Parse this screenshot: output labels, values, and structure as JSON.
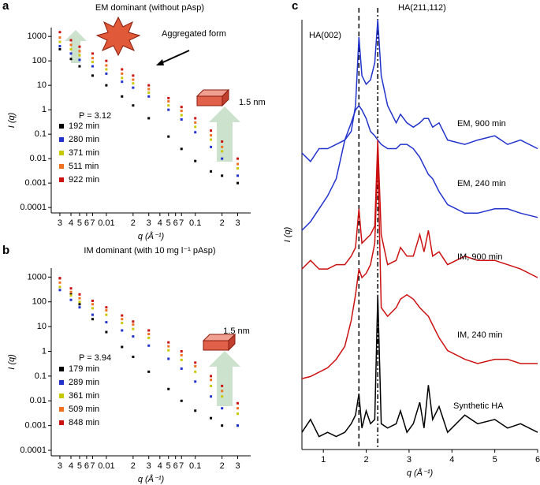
{
  "chart_data": [
    {
      "type": "scatter",
      "label": "a",
      "title": "EM dominant (without pAsp)",
      "xlabel": "q (Å⁻¹)",
      "ylabel": "I (q)",
      "log": true,
      "xlim": [
        0.0024,
        0.42
      ],
      "ylim": [
        6e-05,
        2300
      ],
      "xticks": [
        {
          "value": 0.003,
          "label": "3"
        },
        {
          "value": 0.004,
          "label": "4"
        },
        {
          "value": 0.005,
          "label": "5"
        },
        {
          "value": 0.006,
          "label": "6"
        },
        {
          "value": 0.007,
          "label": "7"
        },
        0.01,
        {
          "value": 0.02,
          "label": "2"
        },
        {
          "value": 0.03,
          "label": "3"
        },
        {
          "value": 0.04,
          "label": "4"
        },
        {
          "value": 0.05,
          "label": "5"
        },
        {
          "value": 0.06,
          "label": "6"
        },
        {
          "value": 0.07,
          "label": "7"
        },
        0.1,
        {
          "value": 0.2,
          "label": "2"
        },
        {
          "value": 0.3,
          "label": "3"
        }
      ],
      "yticks": [
        0.0001,
        0.001,
        0.01,
        0.1,
        1,
        10,
        100,
        1000
      ],
      "annotations": [
        "Aggregated form",
        "1.5 nm",
        "P = 3.12"
      ],
      "x": [
        0.003,
        0.004,
        0.005,
        0.007,
        0.01,
        0.015,
        0.02,
        0.03,
        0.05,
        0.07,
        0.1,
        0.15,
        0.2,
        0.3
      ],
      "series": [
        {
          "name": "192 min",
          "color": "#000000",
          "values": [
            300,
            120,
            60,
            25,
            10,
            3.5,
            1.5,
            0.45,
            0.08,
            0.025,
            0.008,
            0.003,
            0.002,
            0.001
          ]
        },
        {
          "name": "280 min",
          "color": "#2233cc",
          "values": [
            400,
            200,
            110,
            60,
            30,
            14,
            8,
            3.5,
            1,
            0.4,
            0.12,
            0.03,
            0.01,
            0.002
          ]
        },
        {
          "name": "371 min",
          "color": "#c8c800",
          "values": [
            600,
            300,
            170,
            90,
            45,
            20,
            12,
            5,
            1.5,
            0.6,
            0.2,
            0.06,
            0.02,
            0.004
          ]
        },
        {
          "name": "511 min",
          "color": "#f07020",
          "values": [
            900,
            450,
            250,
            130,
            65,
            30,
            17,
            7,
            2.2,
            0.9,
            0.3,
            0.09,
            0.03,
            0.006
          ]
        },
        {
          "name": "922 min",
          "color": "#cc1111",
          "values": [
            1500,
            700,
            380,
            200,
            100,
            45,
            25,
            10,
            3,
            1.3,
            0.45,
            0.14,
            0.05,
            0.01
          ]
        }
      ]
    },
    {
      "type": "scatter",
      "label": "b",
      "title": "IM dominant (with 10 mg l⁻¹ pAsp)",
      "xlabel": "q (Å⁻¹)",
      "ylabel": "I (q)",
      "log": true,
      "xlim": [
        0.0024,
        0.42
      ],
      "ylim": [
        6e-05,
        2300
      ],
      "xticks": [
        {
          "value": 0.003,
          "label": "3"
        },
        {
          "value": 0.004,
          "label": "4"
        },
        {
          "value": 0.005,
          "label": "5"
        },
        {
          "value": 0.006,
          "label": "6"
        },
        {
          "value": 0.007,
          "label": "7"
        },
        0.01,
        {
          "value": 0.02,
          "label": "2"
        },
        {
          "value": 0.03,
          "label": "3"
        },
        {
          "value": 0.04,
          "label": "4"
        },
        {
          "value": 0.05,
          "label": "5"
        },
        {
          "value": 0.06,
          "label": "6"
        },
        {
          "value": 0.07,
          "label": "7"
        },
        0.1,
        {
          "value": 0.2,
          "label": "2"
        },
        {
          "value": 0.3,
          "label": "3"
        }
      ],
      "yticks": [
        0.0001,
        0.001,
        0.01,
        0.1,
        1,
        10,
        100,
        1000
      ],
      "annotations": [
        "1.5 nm",
        "P = 3.94"
      ],
      "x": [
        0.003,
        0.004,
        0.005,
        0.007,
        0.01,
        0.015,
        0.02,
        0.03,
        0.05,
        0.07,
        0.1,
        0.15,
        0.2,
        0.3
      ],
      "series": [
        {
          "name": "179 min",
          "color": "#000000",
          "values": [
            900,
            200,
            80,
            20,
            6,
            1.5,
            0.6,
            0.15,
            0.03,
            0.01,
            0.004,
            0.002,
            0.001,
            0.001
          ]
        },
        {
          "name": "289 min",
          "color": "#2233cc",
          "values": [
            300,
            120,
            60,
            30,
            15,
            7,
            4,
            1.7,
            0.5,
            0.2,
            0.06,
            0.015,
            0.005,
            0.001
          ]
        },
        {
          "name": "361 min",
          "color": "#c8c800",
          "values": [
            400,
            180,
            100,
            55,
            30,
            14,
            8,
            3.5,
            1.1,
            0.45,
            0.15,
            0.04,
            0.015,
            0.003
          ]
        },
        {
          "name": "509 min",
          "color": "#f07020",
          "values": [
            600,
            250,
            140,
            80,
            45,
            20,
            12,
            5,
            1.6,
            0.7,
            0.25,
            0.07,
            0.025,
            0.005
          ]
        },
        {
          "name": "848 min",
          "color": "#cc1111",
          "values": [
            900,
            350,
            200,
            110,
            60,
            28,
            16,
            7,
            2.3,
            1,
            0.35,
            0.1,
            0.04,
            0.008
          ]
        }
      ]
    },
    {
      "type": "line",
      "label": "c",
      "xlabel": "q (Å⁻¹)",
      "ylabel": "I (q)",
      "xlim": [
        0.5,
        6
      ],
      "ylim": [
        0,
        100
      ],
      "xticks": [
        1,
        2,
        3,
        4,
        5,
        6
      ],
      "vlines": [
        1.83,
        2.27
      ],
      "annotations": [
        "HA(002)",
        "HA(211,112)",
        "EM, 900 min",
        "EM, 240 min",
        "IM, 900 min",
        "IM, 240 min",
        "Synthetic HA"
      ],
      "x": [
        0.5,
        0.7,
        0.9,
        1.1,
        1.3,
        1.5,
        1.65,
        1.75,
        1.83,
        1.9,
        2.0,
        2.1,
        2.2,
        2.27,
        2.35,
        2.5,
        2.7,
        2.8,
        2.95,
        3.1,
        3.25,
        3.35,
        3.45,
        3.55,
        3.7,
        3.9,
        4.3,
        4.6,
        5.0,
        5.3,
        5.6,
        6.0
      ],
      "series": [
        {
          "name": "EM, 900 min",
          "color": "#2233cc",
          "values": [
            69,
            67,
            70,
            70,
            71,
            72,
            74,
            80,
            96,
            87,
            85,
            86,
            90,
            100,
            87,
            80,
            76,
            78,
            76,
            75,
            76,
            77,
            77,
            75,
            76,
            72,
            71,
            72,
            73,
            71,
            72,
            70
          ]
        },
        {
          "name": "EM, 240 min",
          "color": "#2233cc",
          "values": [
            51,
            53,
            56,
            59,
            63,
            72,
            76,
            79,
            80,
            79,
            77,
            74,
            73,
            72,
            71,
            70,
            70,
            71,
            71,
            70,
            68,
            66,
            64,
            63,
            60,
            57,
            55,
            55,
            56,
            56,
            55,
            54
          ]
        },
        {
          "name": "IM, 900 min",
          "color": "#cc1111",
          "values": [
            42,
            44,
            42,
            42,
            43,
            43,
            45,
            47,
            56,
            48,
            49,
            50,
            52,
            72,
            50,
            43,
            44,
            47,
            45,
            45,
            50,
            46,
            51,
            45,
            46,
            43,
            45,
            44,
            44,
            43,
            42,
            40
          ]
        },
        {
          "name": "IM, 240 min",
          "color": "#cc1111",
          "values": [
            16.5,
            17,
            18,
            19,
            21,
            24,
            30,
            36,
            42,
            40,
            41,
            43,
            48,
            68,
            33,
            31,
            33,
            35,
            36,
            35,
            33,
            32,
            31,
            29,
            26,
            23,
            21,
            20,
            21,
            21,
            20,
            20
          ]
        },
        {
          "name": "Synthetic HA",
          "color": "#000000",
          "values": [
            4,
            7,
            3,
            4,
            3,
            4,
            6,
            8,
            13,
            5,
            9,
            6,
            7,
            36,
            6,
            5,
            6,
            9,
            4,
            6,
            11,
            5,
            15,
            7,
            10,
            4,
            8,
            6,
            7,
            5,
            6,
            4
          ]
        }
      ]
    }
  ]
}
